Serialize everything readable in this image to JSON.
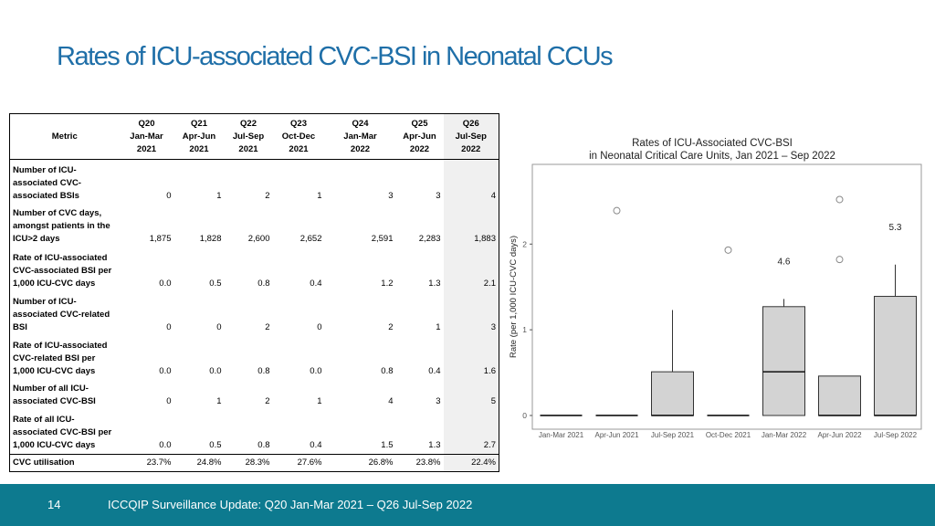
{
  "title": "Rates of ICU-associated CVC-BSI in Neonatal CCUs",
  "table": {
    "header": [
      [
        "Metric"
      ],
      [
        "Q20",
        "Jan-Mar",
        "2021"
      ],
      [
        "Q21",
        "Apr-Jun",
        "2021"
      ],
      [
        "Q22",
        "Jul-Sep",
        "2021"
      ],
      [
        "Q23",
        "Oct-Dec",
        "2021"
      ],
      [
        "Q24",
        "Jan-Mar",
        "2022"
      ],
      [
        "Q25",
        "Apr-Jun",
        "2022"
      ],
      [
        "Q26",
        "Jul-Sep",
        "2022"
      ]
    ],
    "rows": [
      [
        "Number of ICU-associated CVC-associated BSIs",
        "0",
        "1",
        "2",
        "1",
        "3",
        "3",
        "4"
      ],
      [
        "Number of CVC days, amongst patients in the ICU>2 days",
        "1,875",
        "1,828",
        "2,600",
        "2,652",
        "2,591",
        "2,283",
        "1,883"
      ],
      [
        "Rate of ICU-associated CVC-associated BSI per 1,000 ICU-CVC days",
        "0.0",
        "0.5",
        "0.8",
        "0.4",
        "1.2",
        "1.3",
        "2.1"
      ],
      [
        "Number of ICU-associated CVC-related BSI",
        "0",
        "0",
        "2",
        "0",
        "2",
        "1",
        "3"
      ],
      [
        "Rate of ICU-associated CVC-related BSI per 1,000 ICU-CVC days",
        "0.0",
        "0.0",
        "0.8",
        "0.0",
        "0.8",
        "0.4",
        "1.6"
      ],
      [
        "Number of all ICU-associated CVC-BSI",
        "0",
        "1",
        "2",
        "1",
        "4",
        "3",
        "5"
      ],
      [
        "Rate of all ICU-associated CVC-BSI per 1,000 ICU-CVC days",
        "0.0",
        "0.5",
        "0.8",
        "0.4",
        "1.5",
        "1.3",
        "2.7"
      ],
      [
        "CVC utilisation",
        "23.7%",
        "24.8%",
        "28.3%",
        "27.6%",
        "26.8%",
        "23.8%",
        "22.4%"
      ]
    ]
  },
  "chart_data": {
    "type": "box",
    "title": [
      "Rates of ICU-Associated CVC-BSI",
      "in Neonatal Critical Care Units, Jan 2021 – Sep 2022"
    ],
    "y_label": "Rate (per 1,000 ICU-CVC days)",
    "categories": [
      "Jan-Mar 2021",
      "Apr-Jun 2021",
      "Jul-Sep 2021",
      "Oct-Dec 2021",
      "Jan-Mar 2022",
      "Apr-Jun 2022",
      "Jul-Sep 2022"
    ],
    "color": "#d3d3d3",
    "boxes": [
      {
        "min": 0,
        "q1": 0,
        "median": 0,
        "q3": 0,
        "max": 0,
        "outliers": []
      },
      {
        "min": 0,
        "q1": 0,
        "median": 0,
        "q3": 0,
        "max": 0,
        "outliers": [
          2.39
        ]
      },
      {
        "min": 0,
        "q1": 0,
        "median": 0,
        "q3": 0.51,
        "max": 1.23,
        "outliers": []
      },
      {
        "min": 0,
        "q1": 0,
        "median": 0,
        "q3": 0,
        "max": 0,
        "outliers": [
          1.93
        ]
      },
      {
        "min": 0,
        "q1": 0,
        "median": 0.51,
        "q3": 1.27,
        "max": 1.36,
        "outliers": [],
        "offscale": [
          4.6
        ]
      },
      {
        "min": 0,
        "q1": 0,
        "median": 0,
        "q3": 0.46,
        "max": 0.46,
        "outliers": [
          2.52,
          1.82
        ]
      },
      {
        "min": 0,
        "q1": 0,
        "median": 0,
        "q3": 1.39,
        "max": 1.76,
        "outliers": [],
        "offscale": [
          5.3
        ]
      }
    ],
    "ylim": [
      -0.16,
      2.93
    ],
    "yticks": [
      0,
      1,
      2
    ]
  },
  "footer": {
    "page": "14",
    "text": "ICCQIP Surveillance Update: Q20 Jan-Mar 2021 – Q26 Jul-Sep 2022"
  }
}
